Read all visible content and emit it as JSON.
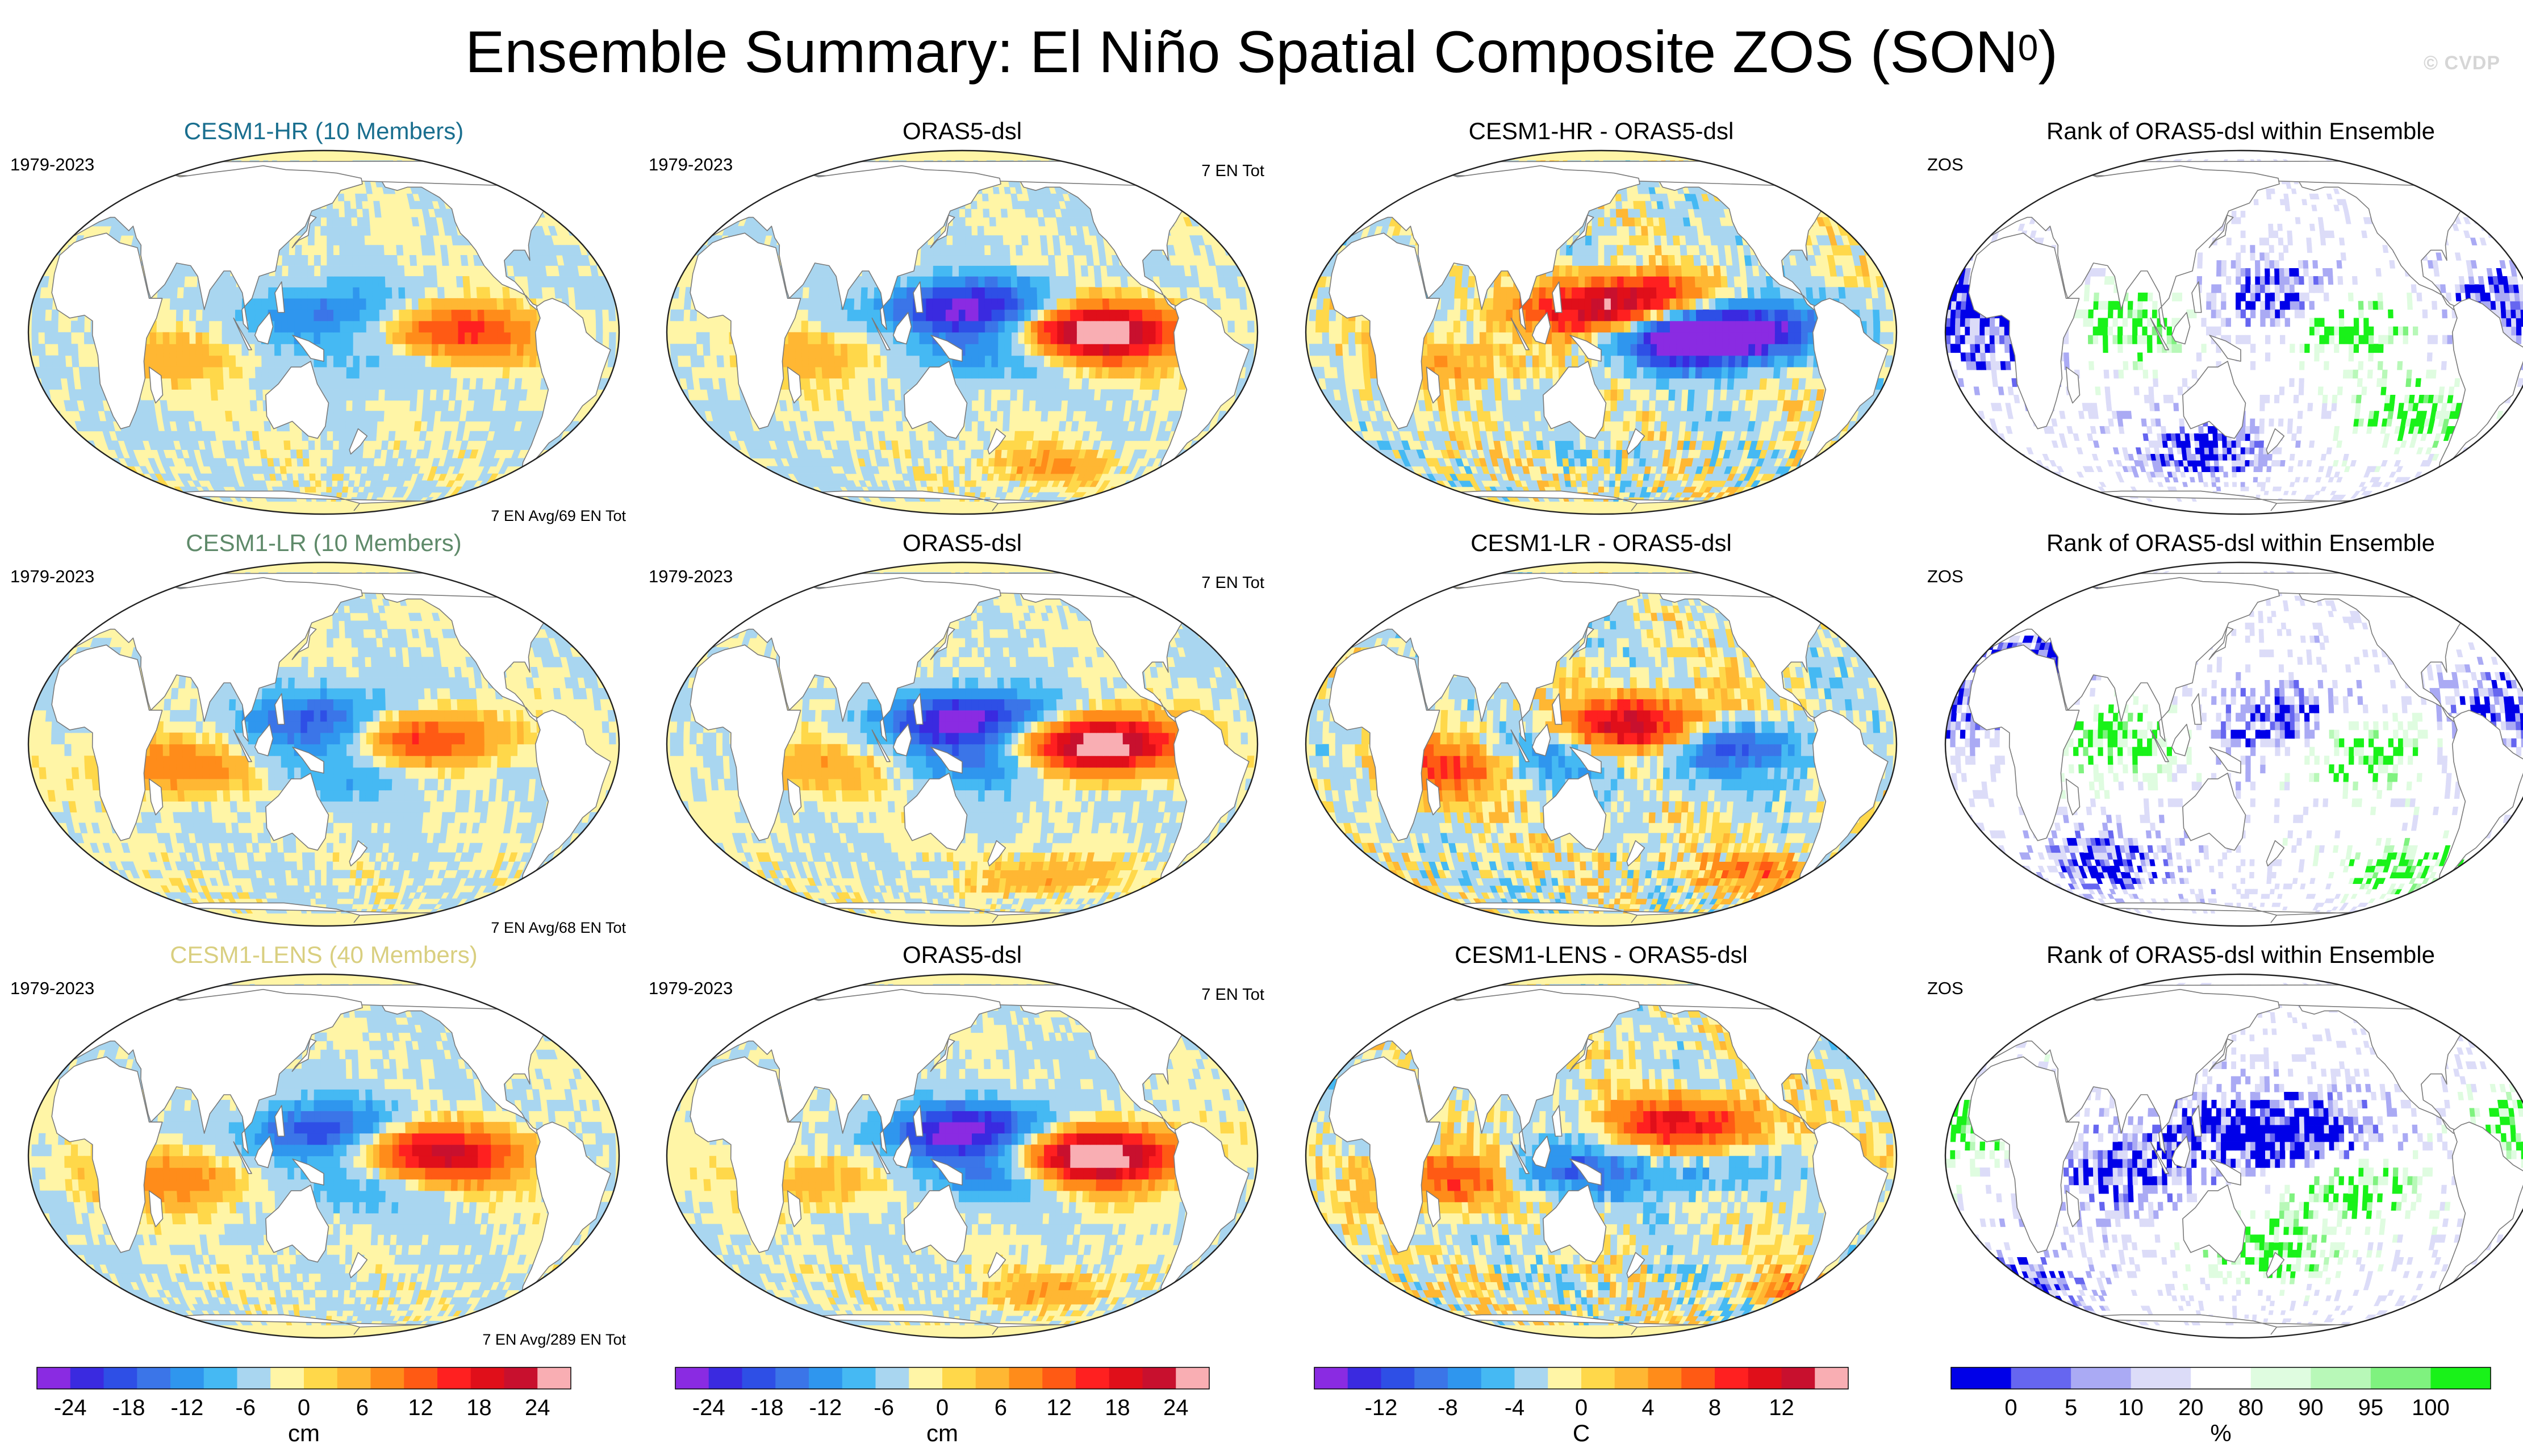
{
  "title": {
    "main": "Ensemble Summary: El Niño Spatial Composite ZOS (SON",
    "superscript": "0",
    "close": ")"
  },
  "watermark": "© CVDP",
  "colors": {
    "land": "#ffffff",
    "ocean_base": "#fff5a6",
    "coast": "#7a7a7a",
    "cmap_diverging": [
      "#8a2be2",
      "#3a2ae0",
      "#2e4fe6",
      "#3b75e8",
      "#2f96ee",
      "#45b9f3",
      "#a9d6f0",
      "#fff5a6",
      "#ffd84a",
      "#ffb733",
      "#ff8c1a",
      "#ff5a14",
      "#ff2020",
      "#e00f1a",
      "#c8102e",
      "#f9aeb3"
    ],
    "cmap_rank": [
      "#0000e8",
      "#6666f0",
      "#aaaaf4",
      "#dcdcf8",
      "#ffffff",
      "#dffce0",
      "#b8f8b8",
      "#7ff27f",
      "#19f219"
    ],
    "cesm1_hr_title": "#1a6f8f",
    "cesm1_lr_title": "#5f8a6a",
    "cesm1_lens_title": "#d9cf80"
  },
  "chart_data": [
    {
      "type": "map",
      "panel": "row1-col1",
      "title": "CESM1-HR (10 Members)",
      "left_label": "1979-2023",
      "right_label": "",
      "bottom_label": "7 EN Avg/69 EN Tot",
      "variable": "ZOS",
      "units": "cm",
      "cmap": "div",
      "hotspots": [
        {
          "lon": -120,
          "lat": -1,
          "value": 13
        },
        {
          "lon": -160,
          "lat": 3,
          "value": 9
        },
        {
          "lon": 145,
          "lat": 5,
          "value": -10
        },
        {
          "lon": 178,
          "lat": 9,
          "value": -7
        },
        {
          "lon": -178,
          "lat": -9,
          "value": -6
        },
        {
          "lon": 65,
          "lat": -8,
          "value": 5
        }
      ]
    },
    {
      "type": "map",
      "panel": "row1-col2",
      "title": "ORAS5-dsl",
      "left_label": "1979-2023",
      "right_label": "7 EN Tot",
      "bottom_label": "",
      "variable": "ZOS",
      "units": "cm",
      "cmap": "div",
      "hotspots": [
        {
          "lon": -118,
          "lat": 0,
          "value": 22
        },
        {
          "lon": -150,
          "lat": 0,
          "value": 16
        },
        {
          "lon": 140,
          "lat": 8,
          "value": -17
        },
        {
          "lon": 170,
          "lat": -6,
          "value": -13
        },
        {
          "lon": 175,
          "lat": 10,
          "value": -12
        },
        {
          "lon": -150,
          "lat": -52,
          "value": 7
        },
        {
          "lon": 65,
          "lat": -8,
          "value": 6
        }
      ]
    },
    {
      "type": "map",
      "panel": "row1-col3",
      "title": "CESM1-HR - ORAS5-dsl",
      "left_label": "",
      "right_label": "",
      "bottom_label": "",
      "variable": "ZOS",
      "units": "C",
      "cmap": "diff",
      "hotspots": [
        {
          "lon": 150,
          "lat": 8,
          "value": 11
        },
        {
          "lon": 175,
          "lat": 12,
          "value": 7
        },
        {
          "lon": -140,
          "lat": -1,
          "value": -13
        },
        {
          "lon": -165,
          "lat": -2,
          "value": -9
        },
        {
          "lon": -100,
          "lat": 2,
          "value": -5
        },
        {
          "lon": 60,
          "lat": -10,
          "value": 4
        }
      ]
    },
    {
      "type": "map",
      "panel": "row1-col4",
      "title": "Rank of ORAS5-dsl within Ensemble",
      "left_label": "ZOS",
      "right_label": "",
      "bottom_label": "",
      "variable": "ZOS",
      "units": "%",
      "cmap": "rank",
      "hotspots": [
        {
          "lon": 175,
          "lat": 12,
          "value": 2
        },
        {
          "lon": -150,
          "lat": 2,
          "value": 98
        },
        {
          "lon": -40,
          "lat": 12,
          "value": 2
        },
        {
          "lon": 10,
          "lat": -2,
          "value": 2
        },
        {
          "lon": 75,
          "lat": 2,
          "value": 97
        },
        {
          "lon": -100,
          "lat": -30,
          "value": 96
        },
        {
          "lon": 120,
          "lat": -45,
          "value": 3
        }
      ]
    },
    {
      "type": "map",
      "panel": "row2-col1",
      "title": "CESM1-LR (10 Members)",
      "left_label": "1979-2023",
      "right_label": "",
      "bottom_label": "7 EN Avg/68 EN Tot",
      "variable": "ZOS",
      "units": "cm",
      "cmap": "div",
      "hotspots": [
        {
          "lon": -140,
          "lat": 2,
          "value": 11
        },
        {
          "lon": -170,
          "lat": 3,
          "value": 8
        },
        {
          "lon": 140,
          "lat": 6,
          "value": -12
        },
        {
          "lon": 160,
          "lat": 12,
          "value": -8
        },
        {
          "lon": 170,
          "lat": -10,
          "value": -7
        },
        {
          "lon": 60,
          "lat": -8,
          "value": 11
        }
      ]
    },
    {
      "type": "map",
      "panel": "row2-col2",
      "title": "ORAS5-dsl",
      "left_label": "1979-2023",
      "right_label": "7 EN Tot",
      "bottom_label": "",
      "variable": "ZOS",
      "units": "cm",
      "cmap": "div",
      "hotspots": [
        {
          "lon": -118,
          "lat": 0,
          "value": 22
        },
        {
          "lon": -150,
          "lat": 0,
          "value": 16
        },
        {
          "lon": 140,
          "lat": 8,
          "value": -17
        },
        {
          "lon": 170,
          "lat": -6,
          "value": -13
        },
        {
          "lon": 175,
          "lat": 10,
          "value": -12
        },
        {
          "lon": -150,
          "lat": -52,
          "value": 7
        },
        {
          "lon": 65,
          "lat": -8,
          "value": 6
        }
      ]
    },
    {
      "type": "map",
      "panel": "row2-col3",
      "title": "CESM1-LR - ORAS5-dsl",
      "left_label": "",
      "right_label": "",
      "bottom_label": "",
      "variable": "ZOS",
      "units": "C",
      "cmap": "diff",
      "hotspots": [
        {
          "lon": 165,
          "lat": 5,
          "value": 8
        },
        {
          "lon": -175,
          "lat": 8,
          "value": 6
        },
        {
          "lon": -130,
          "lat": -1,
          "value": -9
        },
        {
          "lon": 120,
          "lat": -5,
          "value": -6
        },
        {
          "lon": 60,
          "lat": -8,
          "value": 8
        },
        {
          "lon": -100,
          "lat": -50,
          "value": 5
        }
      ]
    },
    {
      "type": "map",
      "panel": "row2-col4",
      "title": "Rank of ORAS5-dsl within Ensemble",
      "left_label": "ZOS",
      "right_label": "",
      "bottom_label": "",
      "variable": "ZOS",
      "units": "%",
      "cmap": "rank",
      "hotspots": [
        {
          "lon": 175,
          "lat": 8,
          "value": 2
        },
        {
          "lon": -140,
          "lat": -2,
          "value": 98
        },
        {
          "lon": -40,
          "lat": 12,
          "value": 2
        },
        {
          "lon": 20,
          "lat": 30,
          "value": 2
        },
        {
          "lon": 75,
          "lat": 2,
          "value": 97
        },
        {
          "lon": 60,
          "lat": -45,
          "value": 3
        },
        {
          "lon": -100,
          "lat": -48,
          "value": 97
        },
        {
          "lon": 10,
          "lat": 72,
          "value": 3
        }
      ]
    },
    {
      "type": "map",
      "panel": "row3-col1",
      "title": "CESM1-LENS (40 Members)",
      "left_label": "1979-2023",
      "right_label": "",
      "bottom_label": "7 EN Avg/289 EN Tot",
      "variable": "ZOS",
      "units": "cm",
      "cmap": "div",
      "hotspots": [
        {
          "lon": -130,
          "lat": 0,
          "value": 17
        },
        {
          "lon": -165,
          "lat": 2,
          "value": 12
        },
        {
          "lon": 140,
          "lat": 6,
          "value": -13
        },
        {
          "lon": 165,
          "lat": 12,
          "value": -9
        },
        {
          "lon": 170,
          "lat": -10,
          "value": -8
        },
        {
          "lon": 60,
          "lat": -8,
          "value": 11
        }
      ]
    },
    {
      "type": "map",
      "panel": "row3-col2",
      "title": "ORAS5-dsl",
      "left_label": "1979-2023",
      "right_label": "7 EN Tot",
      "bottom_label": "",
      "variable": "ZOS",
      "units": "cm",
      "cmap": "div",
      "hotspots": [
        {
          "lon": -118,
          "lat": 0,
          "value": 22
        },
        {
          "lon": -150,
          "lat": 0,
          "value": 16
        },
        {
          "lon": 140,
          "lat": 8,
          "value": -17
        },
        {
          "lon": 170,
          "lat": -6,
          "value": -13
        },
        {
          "lon": 175,
          "lat": 10,
          "value": -12
        },
        {
          "lon": -150,
          "lat": -52,
          "value": 7
        },
        {
          "lon": 65,
          "lat": -8,
          "value": 6
        }
      ]
    },
    {
      "type": "map",
      "panel": "row3-col3",
      "title": "CESM1-LENS - ORAS5-dsl",
      "left_label": "",
      "right_label": "",
      "bottom_label": "",
      "variable": "ZOS",
      "units": "C",
      "cmap": "diff",
      "hotspots": [
        {
          "lon": -170,
          "lat": 10,
          "value": 7
        },
        {
          "lon": -140,
          "lat": 12,
          "value": 5
        },
        {
          "lon": 125,
          "lat": -5,
          "value": -8
        },
        {
          "lon": -150,
          "lat": -5,
          "value": -4
        },
        {
          "lon": 60,
          "lat": -8,
          "value": 9
        },
        {
          "lon": -60,
          "lat": -50,
          "value": 5
        }
      ]
    },
    {
      "type": "map",
      "panel": "row3-col4",
      "title": "Rank of ORAS5-dsl within Ensemble",
      "left_label": "ZOS",
      "right_label": "",
      "bottom_label": "",
      "variable": "ZOS",
      "units": "%",
      "cmap": "rank",
      "hotspots": [
        {
          "lon": -160,
          "lat": 5,
          "value": 2
        },
        {
          "lon": 150,
          "lat": 10,
          "value": 2
        },
        {
          "lon": -140,
          "lat": -10,
          "value": 98
        },
        {
          "lon": -30,
          "lat": 10,
          "value": 97
        },
        {
          "lon": 75,
          "lat": -5,
          "value": 2
        },
        {
          "lon": 0,
          "lat": -50,
          "value": 3
        },
        {
          "lon": -20,
          "lat": 72,
          "value": 3
        },
        {
          "lon": 170,
          "lat": -35,
          "value": 97
        }
      ]
    },
    {
      "type": "colorbar",
      "panel": "cbar-col1",
      "labels": [
        "-24",
        "-18",
        "-12",
        "-6",
        "0",
        "6",
        "12",
        "18",
        "24"
      ],
      "units": "cm",
      "cmap": "div"
    },
    {
      "type": "colorbar",
      "panel": "cbar-col2",
      "labels": [
        "-24",
        "-18",
        "-12",
        "-6",
        "0",
        "6",
        "12",
        "18",
        "24"
      ],
      "units": "cm",
      "cmap": "div"
    },
    {
      "type": "colorbar",
      "panel": "cbar-col3",
      "labels": [
        "-12",
        "-8",
        "-4",
        "0",
        "4",
        "8",
        "12"
      ],
      "units": "C",
      "cmap": "div"
    },
    {
      "type": "colorbar",
      "panel": "cbar-col4",
      "labels": [
        "0",
        "5",
        "10",
        "20",
        "80",
        "90",
        "95",
        "100"
      ],
      "units": "%",
      "cmap": "rank"
    }
  ]
}
